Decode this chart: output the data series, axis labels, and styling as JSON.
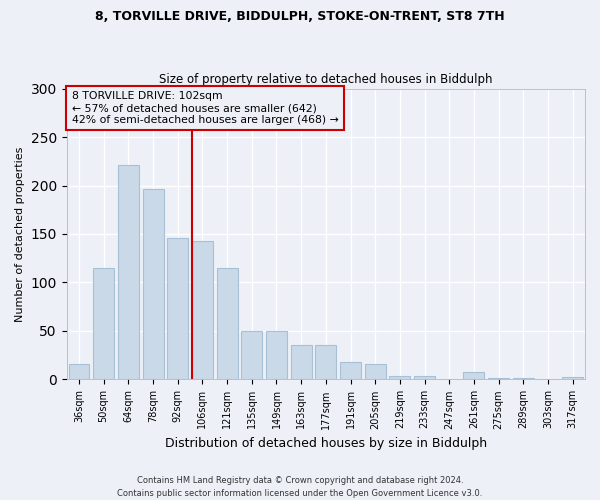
{
  "title1": "8, TORVILLE DRIVE, BIDDULPH, STOKE-ON-TRENT, ST8 7TH",
  "title2": "Size of property relative to detached houses in Biddulph",
  "xlabel": "Distribution of detached houses by size in Biddulph",
  "ylabel": "Number of detached properties",
  "categories": [
    "36sqm",
    "50sqm",
    "64sqm",
    "78sqm",
    "92sqm",
    "106sqm",
    "121sqm",
    "135sqm",
    "149sqm",
    "163sqm",
    "177sqm",
    "191sqm",
    "205sqm",
    "219sqm",
    "233sqm",
    "247sqm",
    "261sqm",
    "275sqm",
    "289sqm",
    "303sqm",
    "317sqm"
  ],
  "values": [
    16,
    115,
    221,
    196,
    146,
    143,
    115,
    50,
    50,
    36,
    36,
    18,
    16,
    4,
    4,
    0,
    8,
    2,
    2,
    0,
    3
  ],
  "bar_color": "#c9d9e8",
  "bar_edge_color": "#a8c0d6",
  "vline_color": "#cc0000",
  "vline_pos": 4.575,
  "annotation_lines": [
    "8 TORVILLE DRIVE: 102sqm",
    "← 57% of detached houses are smaller (642)",
    "42% of semi-detached houses are larger (468) →"
  ],
  "annotation_box_color": "#cc0000",
  "ylim": [
    0,
    300
  ],
  "yticks": [
    0,
    50,
    100,
    150,
    200,
    250,
    300
  ],
  "footer": "Contains HM Land Registry data © Crown copyright and database right 2024.\nContains public sector information licensed under the Open Government Licence v3.0.",
  "background_color": "#edf1f7",
  "grid_color": "#ffffff"
}
